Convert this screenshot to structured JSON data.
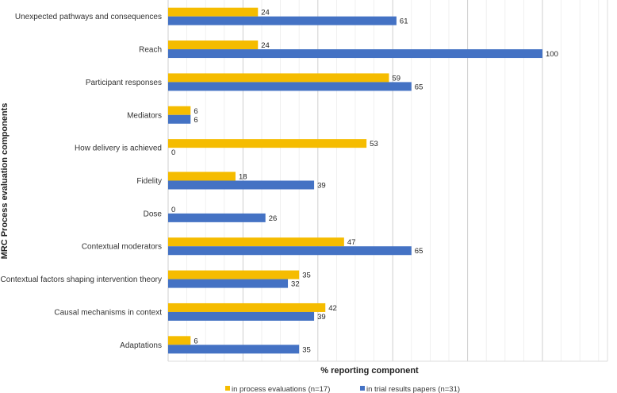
{
  "chart_data": {
    "type": "bar",
    "orientation": "horizontal",
    "xlabel": "% reporting component",
    "ylabel": "MRC Process evaluation components",
    "xlim": [
      0,
      120
    ],
    "grid": true,
    "legend_position": "bottom",
    "categories": [
      "Unexpected pathways and consequences",
      "Reach",
      "Participant responses",
      "Mediators",
      "How delivery is achieved",
      "Fidelity",
      "Dose",
      "Contextual moderators",
      "Contextual factors shaping intervention theory",
      "Causal mechanisms in context",
      "Adaptations"
    ],
    "series": [
      {
        "name": "in process evaluations (n=17)",
        "color": "#F5BC00",
        "values": [
          24,
          24,
          59,
          6,
          53,
          18,
          0,
          47,
          35,
          42,
          6
        ]
      },
      {
        "name": "in trial results papers (n=31)",
        "color": "#4472C4",
        "values": [
          61,
          100,
          65,
          6,
          0,
          39,
          26,
          65,
          32,
          39,
          35
        ]
      }
    ]
  }
}
